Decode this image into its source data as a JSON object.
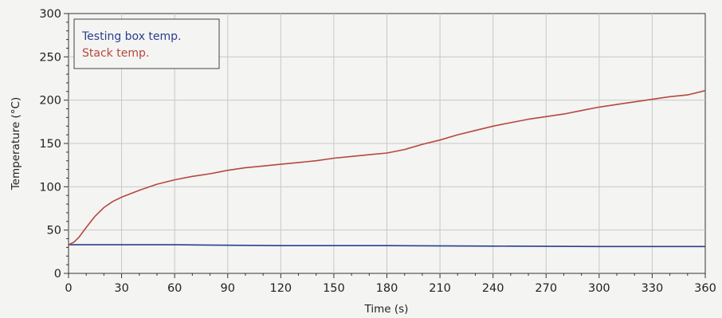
{
  "chart_data": {
    "type": "line",
    "title": "",
    "xlabel": "Time (s)",
    "ylabel": "Temperature (°C)",
    "xlim": [
      0,
      360
    ],
    "ylim": [
      0,
      300
    ],
    "x_ticks": [
      0,
      30,
      60,
      90,
      120,
      150,
      180,
      210,
      240,
      270,
      300,
      330,
      360
    ],
    "y_ticks": [
      0,
      50,
      100,
      150,
      200,
      250,
      300
    ],
    "grid": true,
    "legend_position": "top-left",
    "series": [
      {
        "name": "Testing box temp.",
        "color": "#2b3e8f",
        "points": [
          [
            0,
            33
          ],
          [
            60,
            33
          ],
          [
            120,
            32
          ],
          [
            180,
            32
          ],
          [
            240,
            31.5
          ],
          [
            300,
            31
          ],
          [
            360,
            31
          ]
        ]
      },
      {
        "name": "Stack temp.",
        "color": "#b5483f",
        "points": [
          [
            0,
            33
          ],
          [
            3,
            36
          ],
          [
            6,
            42
          ],
          [
            10,
            53
          ],
          [
            15,
            66
          ],
          [
            20,
            76
          ],
          [
            25,
            83
          ],
          [
            30,
            88
          ],
          [
            40,
            96
          ],
          [
            50,
            103
          ],
          [
            60,
            108
          ],
          [
            70,
            112
          ],
          [
            80,
            115
          ],
          [
            90,
            119
          ],
          [
            100,
            122
          ],
          [
            110,
            124
          ],
          [
            120,
            126
          ],
          [
            130,
            128
          ],
          [
            140,
            130
          ],
          [
            150,
            133
          ],
          [
            160,
            135
          ],
          [
            170,
            137
          ],
          [
            180,
            139
          ],
          [
            190,
            143
          ],
          [
            200,
            149
          ],
          [
            210,
            154
          ],
          [
            220,
            160
          ],
          [
            230,
            165
          ],
          [
            240,
            170
          ],
          [
            250,
            174
          ],
          [
            260,
            178
          ],
          [
            270,
            181
          ],
          [
            280,
            184
          ],
          [
            290,
            188
          ],
          [
            300,
            192
          ],
          [
            310,
            195
          ],
          [
            320,
            198
          ],
          [
            330,
            201
          ],
          [
            340,
            204
          ],
          [
            350,
            206
          ],
          [
            360,
            211
          ]
        ]
      }
    ]
  }
}
